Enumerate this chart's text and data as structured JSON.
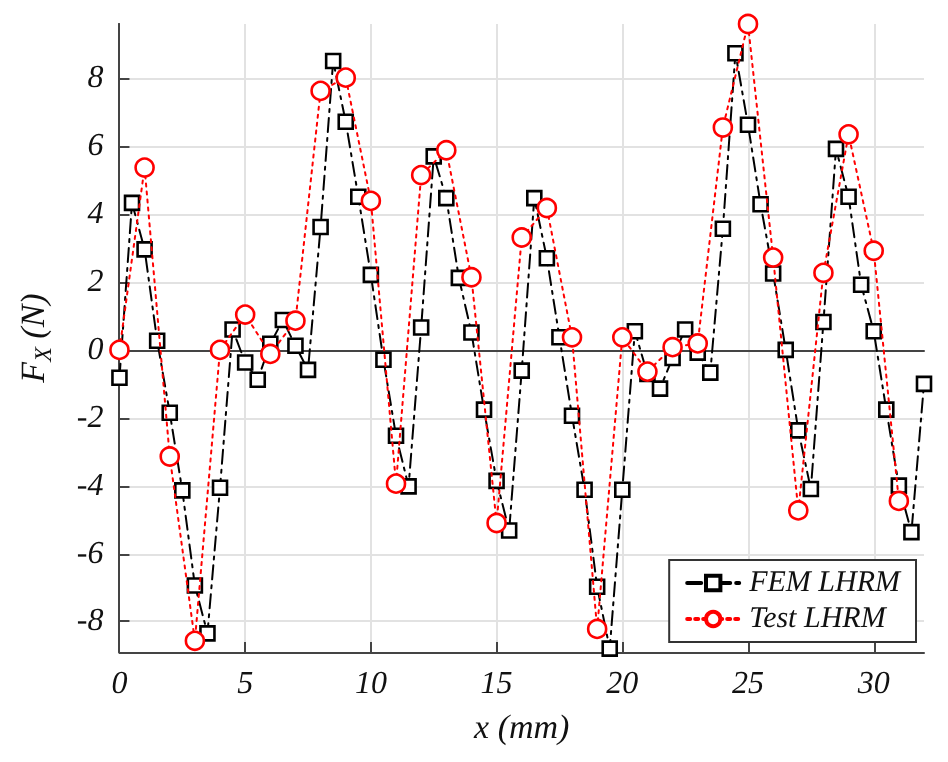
{
  "chart_data": {
    "type": "line",
    "xlabel": "x (mm)",
    "ylabel": "F$_{X}$ (N)",
    "xlim": [
      0,
      32
    ],
    "xticks": [
      0,
      5,
      10,
      15,
      20,
      25,
      30
    ],
    "ylim": [
      -8.9,
      9.6
    ],
    "yticks": [
      -8,
      -6,
      -4,
      -2,
      0,
      2,
      4,
      6,
      8
    ],
    "grid": true,
    "legend": "bottom right",
    "series": [
      {
        "name": "FEM LHRM",
        "color": "#000000",
        "marker": "square",
        "line_style": "dashed",
        "x": [
          0,
          0.5,
          1,
          1.5,
          2,
          2.5,
          3,
          3.5,
          4,
          4.5,
          5,
          5.5,
          6,
          6.5,
          7,
          7.5,
          8,
          8.5,
          9,
          9.5,
          10,
          10.5,
          11,
          11.5,
          12,
          12.5,
          13,
          13.5,
          14,
          14.5,
          15,
          15.5,
          16,
          16.5,
          17,
          17.5,
          18,
          18.5,
          19,
          19.5,
          20,
          20.5,
          21,
          21.5,
          22,
          22.5,
          23,
          23.5,
          24,
          24.5,
          25,
          25.5,
          26,
          26.5,
          27,
          27.5,
          28,
          28.5,
          29,
          29.5,
          30,
          30.5,
          31,
          31.5,
          32
        ],
        "values": [
          -0.82,
          4.33,
          2.96,
          0.27,
          -1.85,
          -4.14,
          -6.94,
          -8.35,
          -4.06,
          0.6,
          -0.37,
          -0.88,
          0.18,
          0.88,
          0.12,
          -0.59,
          3.62,
          8.51,
          6.72,
          4.51,
          2.21,
          -0.29,
          -2.53,
          -4.02,
          0.66,
          5.7,
          4.47,
          2.12,
          0.51,
          -1.76,
          -3.86,
          -5.32,
          -0.61,
          4.47,
          2.7,
          0.37,
          -1.94,
          -4.12,
          -6.98,
          -8.8,
          -4.12,
          0.55,
          -0.71,
          -1.14,
          -0.24,
          0.6,
          -0.08,
          -0.67,
          3.57,
          8.74,
          6.63,
          4.29,
          2.25,
          0,
          -2.37,
          -4.1,
          0.82,
          5.92,
          4.51,
          1.92,
          0.55,
          -1.76,
          -4.0,
          -5.37,
          -1.0
        ]
      },
      {
        "name": "Test LHRM",
        "color": "#ff0000",
        "marker": "circle",
        "line_style": "dotted",
        "x": [
          0,
          1,
          2,
          3,
          4,
          5,
          6,
          7,
          8,
          9,
          10,
          11,
          12,
          13,
          14,
          15,
          16,
          17,
          18,
          19,
          20,
          21,
          22,
          23,
          24,
          25,
          26,
          27,
          28,
          29,
          30,
          31
        ],
        "values": [
          0,
          5.37,
          -3.14,
          -8.57,
          0,
          1.04,
          -0.12,
          0.86,
          7.63,
          8.02,
          4.39,
          -3.94,
          5.15,
          5.88,
          2.14,
          -5.1,
          3.31,
          4.18,
          0.37,
          -8.22,
          0.37,
          -0.64,
          0.08,
          0.19,
          6.55,
          9.6,
          2.72,
          -4.73,
          2.27,
          6.35,
          2.92,
          -4.45
        ]
      }
    ]
  }
}
